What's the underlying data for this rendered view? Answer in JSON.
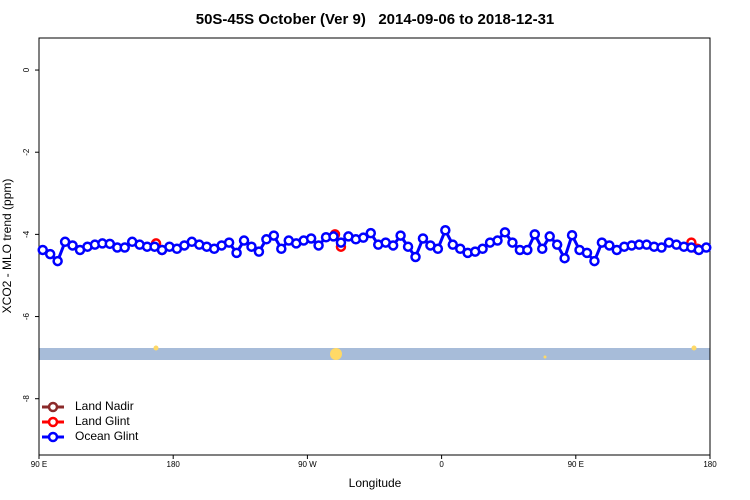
{
  "chart_data": {
    "type": "line",
    "title": "50S-45S October (Ver 9)   2014-09-06 to 2018-12-31",
    "xlabel": "Longitude",
    "ylabel": "XCO2 - MLO trend (ppm)",
    "xlim": [
      90,
      540
    ],
    "ylim": [
      0.78,
      -9.37
    ],
    "xticks": [
      {
        "value": 90,
        "label": "90 E"
      },
      {
        "value": 180,
        "label": "180"
      },
      {
        "value": 270,
        "label": "90 W"
      },
      {
        "value": 360,
        "label": "0"
      },
      {
        "value": 450,
        "label": "90 E"
      },
      {
        "value": 540,
        "label": "180"
      }
    ],
    "yticks": [
      0,
      -2,
      -4,
      -6,
      -8
    ],
    "legend": "bottom-left",
    "series": [
      {
        "name": "Land Nadir",
        "color": "#8b2a2a",
        "x": [],
        "values": []
      },
      {
        "name": "Land Glint",
        "color": "#ff0000",
        "x": [
          168.5,
          172.5,
          null,
          288.5,
          292.5,
          null,
          527.5,
          531.5
        ],
        "values": [
          -4.22,
          -4.38,
          null,
          -4.0,
          -4.3,
          null,
          -4.2,
          -4.35
        ]
      },
      {
        "name": "Ocean Glint",
        "color": "#0000ff",
        "x": [
          92.5,
          97.5,
          102.5,
          107.5,
          112.5,
          117.5,
          122.5,
          127.5,
          132.5,
          137.5,
          142.5,
          147.5,
          152.5,
          157.5,
          162.5,
          167.5,
          172.5,
          177.5,
          182.5,
          187.5,
          192.5,
          197.5,
          202.5,
          207.5,
          212.5,
          217.5,
          222.5,
          227.5,
          232.5,
          237.5,
          242.5,
          247.5,
          252.5,
          257.5,
          262.5,
          267.5,
          272.5,
          277.5,
          282.5,
          287.5,
          292.5,
          297.5,
          302.5,
          307.5,
          312.5,
          317.5,
          322.5,
          327.5,
          332.5,
          337.5,
          342.5,
          347.5,
          352.5,
          357.5,
          362.5,
          367.5,
          372.5,
          377.5,
          382.5,
          387.5,
          392.5,
          397.5,
          402.5,
          407.5,
          412.5,
          417.5,
          422.5,
          427.5,
          432.5,
          437.5,
          442.5,
          447.5,
          452.5,
          457.5,
          462.5,
          467.5,
          472.5,
          477.5,
          482.5,
          487.5,
          492.5,
          497.5,
          502.5,
          507.5,
          512.5,
          517.5,
          522.5,
          527.5,
          532.5,
          537.5
        ],
        "values": [
          -4.38,
          -4.48,
          -4.65,
          -4.18,
          -4.27,
          -4.38,
          -4.3,
          -4.25,
          -4.22,
          -4.23,
          -4.32,
          -4.32,
          -4.18,
          -4.25,
          -4.3,
          -4.3,
          -4.38,
          -4.3,
          -4.35,
          -4.27,
          -4.18,
          -4.25,
          -4.3,
          -4.35,
          -4.27,
          -4.2,
          -4.45,
          -4.15,
          -4.3,
          -4.42,
          -4.12,
          -4.03,
          -4.35,
          -4.15,
          -4.22,
          -4.15,
          -4.1,
          -4.27,
          -4.07,
          -4.05,
          -4.2,
          -4.05,
          -4.12,
          -4.08,
          -3.97,
          -4.25,
          -4.2,
          -4.27,
          -4.03,
          -4.3,
          -4.55,
          -4.1,
          -4.27,
          -4.35,
          -3.9,
          -4.25,
          -4.35,
          -4.45,
          -4.42,
          -4.35,
          -4.2,
          -4.15,
          -3.95,
          -4.2,
          -4.38,
          -4.38,
          -4.0,
          -4.35,
          -4.05,
          -4.25,
          -4.58,
          -4.02,
          -4.38,
          -4.45,
          -4.65,
          -4.2,
          -4.27,
          -4.38,
          -4.3,
          -4.27,
          -4.25,
          -4.25,
          -4.3,
          -4.32,
          -4.2,
          -4.25,
          -4.3,
          -4.32,
          -4.38,
          -4.32
        ]
      }
    ]
  }
}
